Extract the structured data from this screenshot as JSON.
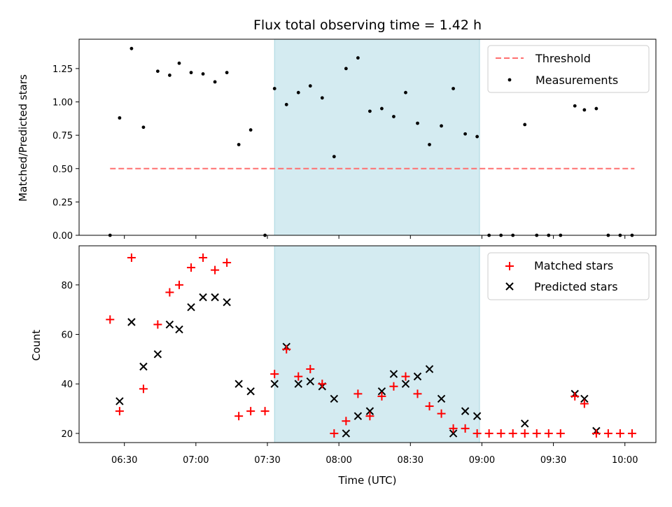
{
  "chart_data": [
    {
      "type": "scatter",
      "title": "Flux total observing time = 1.42 h",
      "xlabel": "",
      "ylabel": "Matched/Predicted stars",
      "ylim": [
        0,
        1.47
      ],
      "y_ticks": [
        0.0,
        0.25,
        0.5,
        0.75,
        1.0,
        1.25
      ],
      "y_tick_labels": [
        "0.00",
        "0.25",
        "0.50",
        "0.75",
        "1.00",
        "1.25"
      ],
      "highlight_span": {
        "x_start": "07:33",
        "x_end": "08:59",
        "color": "#d4ebf1"
      },
      "threshold": {
        "name": "Threshold",
        "value": 0.5,
        "x_start": "06:24",
        "x_end": "10:04",
        "color": "#ff7070"
      },
      "legend": {
        "position": "upper right",
        "entries": [
          "Threshold",
          "Measurements"
        ]
      },
      "series": [
        {
          "name": "Measurements",
          "color": "#000000",
          "points": [
            {
              "x": "06:24",
              "y": 0.0
            },
            {
              "x": "06:28",
              "y": 0.88
            },
            {
              "x": "06:33",
              "y": 1.4
            },
            {
              "x": "06:38",
              "y": 0.81
            },
            {
              "x": "06:44",
              "y": 1.23
            },
            {
              "x": "06:49",
              "y": 1.2
            },
            {
              "x": "06:53",
              "y": 1.29
            },
            {
              "x": "06:58",
              "y": 1.22
            },
            {
              "x": "07:03",
              "y": 1.21
            },
            {
              "x": "07:08",
              "y": 1.15
            },
            {
              "x": "07:13",
              "y": 1.22
            },
            {
              "x": "07:18",
              "y": 0.68
            },
            {
              "x": "07:23",
              "y": 0.79
            },
            {
              "x": "07:29",
              "y": 0.0
            },
            {
              "x": "07:33",
              "y": 1.1
            },
            {
              "x": "07:38",
              "y": 0.98
            },
            {
              "x": "07:43",
              "y": 1.07
            },
            {
              "x": "07:48",
              "y": 1.12
            },
            {
              "x": "07:53",
              "y": 1.03
            },
            {
              "x": "07:58",
              "y": 0.59
            },
            {
              "x": "08:03",
              "y": 1.25
            },
            {
              "x": "08:08",
              "y": 1.33
            },
            {
              "x": "08:13",
              "y": 0.93
            },
            {
              "x": "08:18",
              "y": 0.95
            },
            {
              "x": "08:23",
              "y": 0.89
            },
            {
              "x": "08:28",
              "y": 1.07
            },
            {
              "x": "08:33",
              "y": 0.84
            },
            {
              "x": "08:38",
              "y": 0.68
            },
            {
              "x": "08:43",
              "y": 0.82
            },
            {
              "x": "08:48",
              "y": 1.1
            },
            {
              "x": "08:53",
              "y": 0.76
            },
            {
              "x": "08:58",
              "y": 0.74
            },
            {
              "x": "09:03",
              "y": 0.0
            },
            {
              "x": "09:08",
              "y": 0.0
            },
            {
              "x": "09:13",
              "y": 0.0
            },
            {
              "x": "09:18",
              "y": 0.83
            },
            {
              "x": "09:23",
              "y": 0.0
            },
            {
              "x": "09:28",
              "y": 0.0
            },
            {
              "x": "09:33",
              "y": 0.0
            },
            {
              "x": "09:39",
              "y": 0.97
            },
            {
              "x": "09:43",
              "y": 0.94
            },
            {
              "x": "09:48",
              "y": 0.95
            },
            {
              "x": "09:53",
              "y": 0.0
            },
            {
              "x": "09:58",
              "y": 0.0
            },
            {
              "x": "10:03",
              "y": 0.0
            }
          ]
        }
      ]
    },
    {
      "type": "scatter",
      "title": "",
      "xlabel": "Time (UTC)",
      "ylabel": "Count",
      "xlim": [
        "06:11",
        "10:13"
      ],
      "x_ticks": [
        "06:30",
        "07:00",
        "07:30",
        "08:00",
        "08:30",
        "09:00",
        "09:30",
        "10:00"
      ],
      "ylim": [
        16.3,
        95.8
      ],
      "y_ticks": [
        20,
        40,
        60,
        80
      ],
      "y_tick_labels": [
        "20",
        "40",
        "60",
        "80"
      ],
      "highlight_span": {
        "x_start": "07:33",
        "x_end": "08:59",
        "color": "#d4ebf1"
      },
      "legend": {
        "position": "upper right",
        "entries": [
          "Matched stars",
          "Predicted stars"
        ]
      },
      "series": [
        {
          "name": "Matched stars",
          "marker": "plus",
          "color": "#ff0000",
          "points": [
            {
              "x": "06:24",
              "y": 66
            },
            {
              "x": "06:28",
              "y": 29
            },
            {
              "x": "06:33",
              "y": 91
            },
            {
              "x": "06:38",
              "y": 38
            },
            {
              "x": "06:44",
              "y": 64
            },
            {
              "x": "06:49",
              "y": 77
            },
            {
              "x": "06:53",
              "y": 80
            },
            {
              "x": "06:58",
              "y": 87
            },
            {
              "x": "07:03",
              "y": 91
            },
            {
              "x": "07:08",
              "y": 86
            },
            {
              "x": "07:13",
              "y": 89
            },
            {
              "x": "07:18",
              "y": 27
            },
            {
              "x": "07:23",
              "y": 29
            },
            {
              "x": "07:29",
              "y": 29
            },
            {
              "x": "07:33",
              "y": 44
            },
            {
              "x": "07:38",
              "y": 54
            },
            {
              "x": "07:43",
              "y": 43
            },
            {
              "x": "07:48",
              "y": 46
            },
            {
              "x": "07:53",
              "y": 40
            },
            {
              "x": "07:58",
              "y": 20
            },
            {
              "x": "08:03",
              "y": 25
            },
            {
              "x": "08:08",
              "y": 36
            },
            {
              "x": "08:13",
              "y": 27
            },
            {
              "x": "08:18",
              "y": 35
            },
            {
              "x": "08:23",
              "y": 39
            },
            {
              "x": "08:28",
              "y": 43
            },
            {
              "x": "08:33",
              "y": 36
            },
            {
              "x": "08:38",
              "y": 31
            },
            {
              "x": "08:43",
              "y": 28
            },
            {
              "x": "08:48",
              "y": 22
            },
            {
              "x": "08:53",
              "y": 22
            },
            {
              "x": "08:58",
              "y": 20
            },
            {
              "x": "09:03",
              "y": 20
            },
            {
              "x": "09:08",
              "y": 20
            },
            {
              "x": "09:13",
              "y": 20
            },
            {
              "x": "09:18",
              "y": 20
            },
            {
              "x": "09:23",
              "y": 20
            },
            {
              "x": "09:28",
              "y": 20
            },
            {
              "x": "09:33",
              "y": 20
            },
            {
              "x": "09:39",
              "y": 35
            },
            {
              "x": "09:43",
              "y": 32
            },
            {
              "x": "09:48",
              "y": 20
            },
            {
              "x": "09:53",
              "y": 20
            },
            {
              "x": "09:58",
              "y": 20
            },
            {
              "x": "10:03",
              "y": 20
            }
          ]
        },
        {
          "name": "Predicted stars",
          "marker": "x",
          "color": "#000000",
          "points": [
            {
              "x": "06:28",
              "y": 33
            },
            {
              "x": "06:33",
              "y": 65
            },
            {
              "x": "06:38",
              "y": 47
            },
            {
              "x": "06:44",
              "y": 52
            },
            {
              "x": "06:49",
              "y": 64
            },
            {
              "x": "06:53",
              "y": 62
            },
            {
              "x": "06:58",
              "y": 71
            },
            {
              "x": "07:03",
              "y": 75
            },
            {
              "x": "07:08",
              "y": 75
            },
            {
              "x": "07:13",
              "y": 73
            },
            {
              "x": "07:18",
              "y": 40
            },
            {
              "x": "07:23",
              "y": 37
            },
            {
              "x": "07:33",
              "y": 40
            },
            {
              "x": "07:38",
              "y": 55
            },
            {
              "x": "07:43",
              "y": 40
            },
            {
              "x": "07:48",
              "y": 41
            },
            {
              "x": "07:53",
              "y": 39
            },
            {
              "x": "07:58",
              "y": 34
            },
            {
              "x": "08:03",
              "y": 20
            },
            {
              "x": "08:08",
              "y": 27
            },
            {
              "x": "08:13",
              "y": 29
            },
            {
              "x": "08:18",
              "y": 37
            },
            {
              "x": "08:23",
              "y": 44
            },
            {
              "x": "08:28",
              "y": 40
            },
            {
              "x": "08:33",
              "y": 43
            },
            {
              "x": "08:38",
              "y": 46
            },
            {
              "x": "08:43",
              "y": 34
            },
            {
              "x": "08:48",
              "y": 20
            },
            {
              "x": "08:53",
              "y": 29
            },
            {
              "x": "08:58",
              "y": 27
            },
            {
              "x": "09:18",
              "y": 24
            },
            {
              "x": "09:39",
              "y": 36
            },
            {
              "x": "09:43",
              "y": 34
            },
            {
              "x": "09:48",
              "y": 21
            }
          ]
        }
      ]
    }
  ]
}
